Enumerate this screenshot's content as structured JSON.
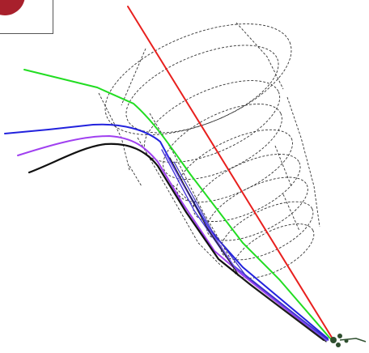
{
  "diagram": {
    "kind": "particle-track event display with cylindrical detector wireframe",
    "colors": {
      "background": "#ffffff",
      "wireframe": "#333333",
      "inset_disc": "#a8202c",
      "inset_border": "#555555",
      "cluster": "#2f4f2f"
    },
    "tracks": [
      {
        "id": "track-red",
        "color": "#e8201e"
      },
      {
        "id": "track-green",
        "color": "#22dd22"
      },
      {
        "id": "track-blue",
        "color": "#2222dd"
      },
      {
        "id": "track-violet",
        "color": "#a040f0"
      },
      {
        "id": "track-black",
        "color": "#111111"
      }
    ]
  }
}
